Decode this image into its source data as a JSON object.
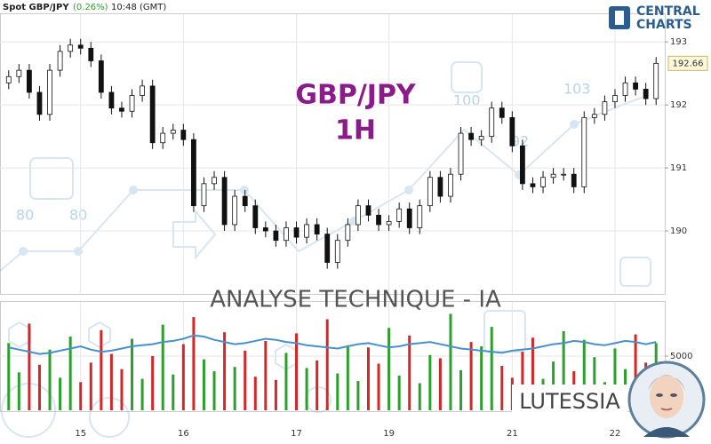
{
  "header": {
    "symbol": "Spot GBP/JPY",
    "change": "(0.26%)",
    "time": "10:48 (GMT)"
  },
  "logo": {
    "line1": "CENTRAL",
    "line2": "CHARTS"
  },
  "overlay": {
    "pair": "GBP/JPY",
    "timeframe": "1H",
    "caption": "ANALYSE TECHNIQUE - IA",
    "brand": "LUTESSIA"
  },
  "watermark_labels": [
    "80",
    "80",
    "100",
    "92",
    "103"
  ],
  "chart_data": [
    {
      "type": "candlestick",
      "categories": [
        null,
        null,
        null,
        null,
        null,
        null,
        null,
        "15",
        null,
        null,
        null,
        null,
        null,
        null,
        null,
        null,
        null,
        "16",
        null,
        null,
        null,
        null,
        null,
        null,
        null,
        null,
        null,
        null,
        "17",
        null,
        null,
        null,
        null,
        null,
        null,
        null,
        null,
        "19",
        null,
        null,
        null,
        null,
        null,
        null,
        null,
        null,
        null,
        null,
        null,
        "21",
        null,
        null,
        null,
        null,
        null,
        null,
        null,
        null,
        null,
        "22",
        null,
        null,
        null,
        null
      ],
      "open": [
        192.35,
        192.45,
        192.55,
        192.2,
        191.85,
        192.55,
        192.85,
        192.95,
        192.9,
        192.7,
        192.2,
        191.95,
        191.9,
        192.15,
        192.3,
        191.4,
        191.55,
        191.6,
        191.45,
        190.4,
        190.75,
        190.85,
        190.1,
        190.55,
        190.4,
        190.05,
        190.0,
        189.85,
        190.05,
        189.9,
        190.1,
        189.95,
        189.5,
        189.85,
        190.1,
        190.4,
        190.25,
        190.1,
        190.15,
        190.35,
        190.05,
        190.4,
        190.85,
        190.55,
        190.9,
        191.55,
        191.45,
        191.5,
        191.95,
        191.8,
        191.35,
        190.75,
        190.7,
        190.85,
        190.9,
        190.9,
        190.7,
        191.8,
        191.85,
        192.05,
        192.15,
        192.35,
        192.25,
        192.1
      ],
      "high": [
        192.55,
        192.65,
        192.65,
        192.3,
        192.65,
        192.95,
        193.05,
        193.05,
        193.0,
        192.8,
        192.3,
        192.05,
        192.25,
        192.4,
        192.4,
        191.65,
        191.7,
        191.7,
        191.55,
        190.85,
        190.95,
        190.95,
        190.65,
        190.65,
        190.5,
        190.15,
        190.1,
        190.15,
        190.15,
        190.2,
        190.2,
        190.05,
        189.95,
        190.2,
        190.5,
        190.5,
        190.35,
        190.25,
        190.45,
        190.45,
        190.5,
        190.95,
        190.95,
        191.0,
        191.65,
        191.65,
        191.6,
        192.05,
        192.05,
        191.9,
        191.45,
        190.85,
        190.95,
        191.0,
        191.0,
        191.0,
        191.9,
        191.95,
        192.15,
        192.25,
        192.45,
        192.45,
        192.35,
        192.76
      ],
      "low": [
        192.25,
        192.35,
        192.1,
        191.75,
        191.75,
        192.45,
        192.75,
        192.8,
        192.6,
        192.1,
        191.85,
        191.8,
        191.8,
        192.05,
        191.3,
        191.3,
        191.45,
        191.35,
        190.3,
        190.3,
        190.65,
        190.0,
        190.0,
        190.3,
        189.95,
        189.9,
        189.75,
        189.75,
        189.8,
        189.8,
        189.85,
        189.4,
        189.4,
        189.75,
        190.0,
        190.15,
        190.0,
        190.0,
        190.05,
        189.95,
        189.95,
        190.3,
        190.45,
        190.45,
        190.8,
        191.35,
        191.35,
        191.4,
        191.7,
        191.25,
        190.65,
        190.6,
        190.6,
        190.75,
        190.8,
        190.6,
        190.6,
        191.7,
        191.75,
        191.95,
        192.05,
        192.15,
        192.0,
        192.0
      ],
      "close": [
        192.45,
        192.55,
        192.2,
        191.85,
        192.55,
        192.85,
        192.95,
        192.9,
        192.7,
        192.2,
        191.95,
        191.9,
        192.15,
        192.3,
        191.4,
        191.55,
        191.6,
        191.45,
        190.4,
        190.75,
        190.85,
        190.1,
        190.55,
        190.4,
        190.05,
        190.0,
        189.85,
        190.05,
        189.9,
        190.1,
        189.95,
        189.5,
        189.85,
        190.1,
        190.4,
        190.25,
        190.1,
        190.15,
        190.35,
        190.05,
        190.4,
        190.85,
        190.55,
        190.9,
        191.55,
        191.45,
        191.5,
        191.95,
        191.8,
        191.35,
        190.75,
        190.7,
        190.85,
        190.9,
        190.9,
        190.7,
        191.8,
        191.85,
        192.05,
        192.15,
        192.35,
        192.25,
        192.1,
        192.66
      ],
      "last_value": 192.66,
      "up_color": "#ffffff",
      "down_color": "#111111",
      "outline_color": "#111111",
      "ylim": [
        189.0,
        193.44
      ],
      "yticks": [
        190,
        191,
        192,
        193
      ],
      "grid": true
    },
    {
      "type": "bar",
      "values": [
        6200,
        3500,
        8000,
        4200,
        5600,
        3000,
        6800,
        2600,
        4400,
        7400,
        5200,
        3800,
        6600,
        2900,
        5000,
        7900,
        3300,
        6100,
        8600,
        4700,
        3600,
        7200,
        4000,
        5500,
        3100,
        6400,
        2800,
        5300,
        7100,
        3900,
        4600,
        8400,
        3400,
        6000,
        2700,
        5800,
        4300,
        7600,
        3200,
        6900,
        2500,
        5100,
        4800,
        8900,
        3700,
        6300,
        5900,
        7700,
        4100,
        3000,
        5400,
        6700,
        2900,
        4500,
        7300,
        3600,
        6500,
        4900,
        2600,
        5700,
        3800,
        7000,
        4400,
        6200
      ],
      "line": [
        5800,
        5600,
        5400,
        5200,
        5300,
        5500,
        5700,
        5900,
        5600,
        5400,
        5500,
        5700,
        5900,
        6000,
        6100,
        6300,
        6400,
        6600,
        6900,
        6800,
        6500,
        6300,
        6100,
        6200,
        6400,
        6600,
        6500,
        6300,
        6200,
        6000,
        5900,
        5800,
        5700,
        5900,
        6100,
        6200,
        6000,
        5800,
        5900,
        6100,
        6200,
        6300,
        6100,
        5900,
        5700,
        5600,
        5500,
        5400,
        5300,
        5500,
        5600,
        5700,
        5900,
        6100,
        6200,
        6400,
        6300,
        6100,
        6000,
        6200,
        6400,
        6300,
        6100,
        6300
      ],
      "up_color": "#2ca02c",
      "down_color": "#d62728",
      "line_color": "#4a90c8",
      "ylim": [
        0,
        10000
      ],
      "yticks": [
        5000
      ],
      "grid": true
    }
  ]
}
